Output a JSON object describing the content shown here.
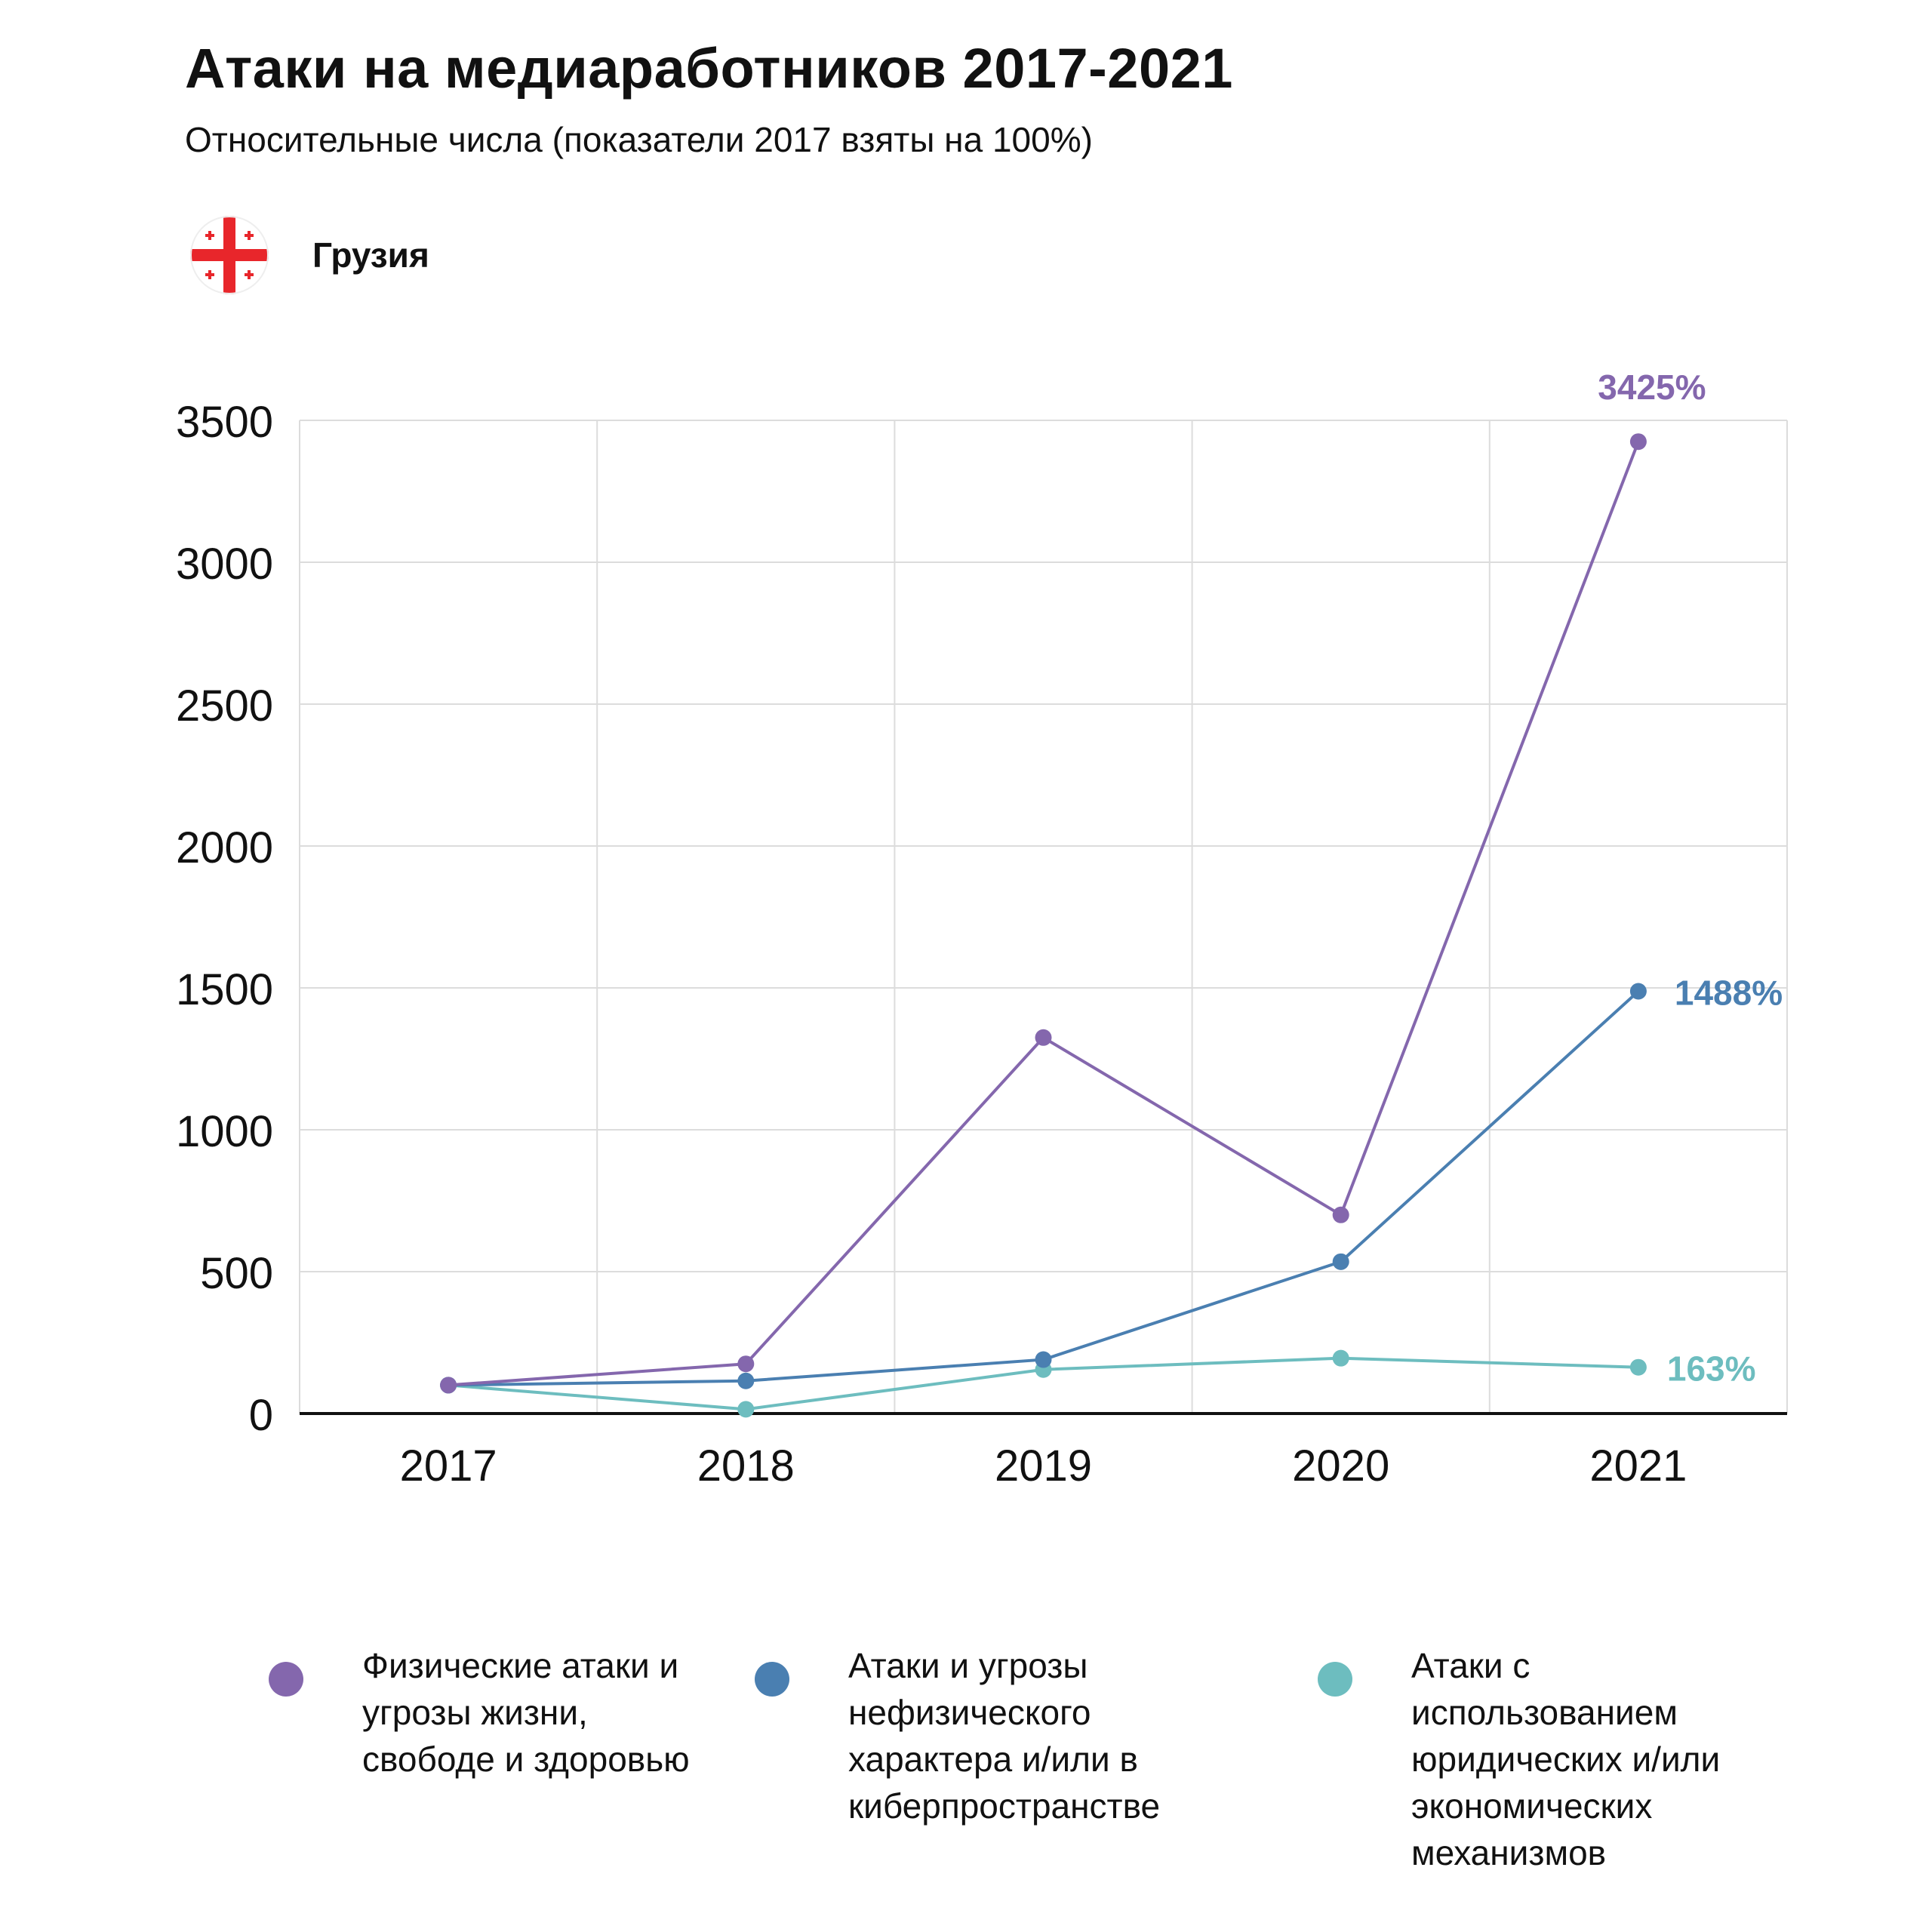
{
  "header": {
    "title": "Атаки на медиаработников 2017-2021",
    "subtitle": "Относительные числа (показатели 2017 взяты на 100%)",
    "country": "Грузия",
    "flag_icon": "georgia-flag-icon"
  },
  "chart_data": {
    "type": "line",
    "categories": [
      "2017",
      "2018",
      "2019",
      "2020",
      "2021"
    ],
    "ylim": [
      0,
      3500
    ],
    "yticks": [
      0,
      500,
      1000,
      1500,
      2000,
      2500,
      3000,
      3500
    ],
    "grid": true,
    "legend_position": "bottom",
    "series": [
      {
        "name": "Физические атаки и угрозы жизни, свободе и здоровью",
        "color": "#8467ad",
        "values": [
          100,
          175,
          1325,
          700,
          3425
        ],
        "end_label": "3425%"
      },
      {
        "name": "Атаки и угрозы нефизического характера и/или в киберпространстве",
        "color": "#4a7fb1",
        "values": [
          100,
          115,
          190,
          535,
          1488
        ],
        "end_label": "1488%"
      },
      {
        "name": "Атаки с использованием юридических и/или экономических механизмов",
        "color": "#6dbdbf",
        "values": [
          100,
          15,
          155,
          195,
          163
        ],
        "end_label": "163%"
      }
    ]
  }
}
